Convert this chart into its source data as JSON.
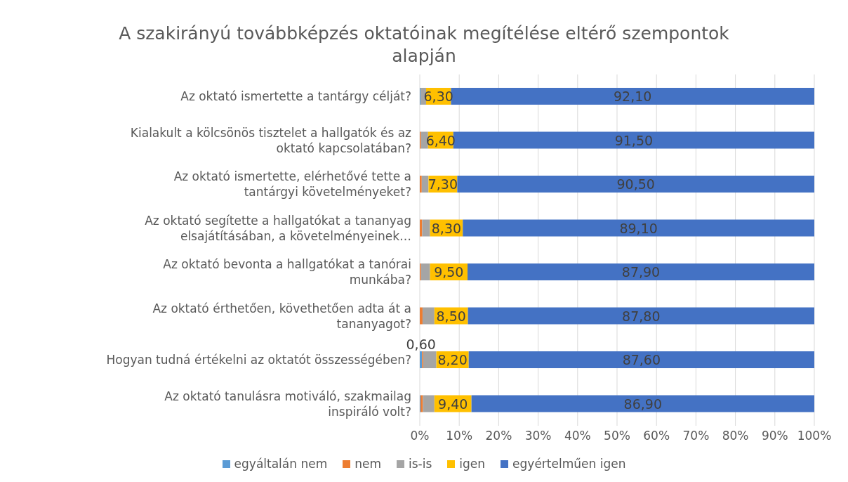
{
  "chart_data": {
    "type": "bar",
    "orientation": "horizontal",
    "stacked": true,
    "title": "A szakirányú továbbképzés oktatóinak megítélése eltérő szempontok alapján",
    "categories": [
      "Az oktató ismertette a tantárgy célját?",
      "Kialakult a kölcsönös tisztelet a hallgatók és az oktató kapcsolatában?",
      "Az oktató ismertette, elérhetővé tette a tantárgyi követelményeket?",
      "Az oktató segítette a hallgatókat a tananyag elsajátításában, a követelményeinek…",
      "Az oktató bevonta a hallgatókat a tanórai munkába?",
      "Az oktató érthetően, követhetően adta át a tananyagot?",
      "Hogyan tudná értékelni az oktatót összességében?",
      "Az oktató tanulásra motiváló, szakmailag inspiráló volt?"
    ],
    "series": [
      {
        "name": "egyáltalán nem",
        "color": "#5b9bd5",
        "values": [
          0.2,
          null,
          null,
          null,
          null,
          null,
          0.6,
          0.2
        ],
        "value_labels": [
          null,
          null,
          null,
          null,
          null,
          null,
          "0,60",
          null
        ]
      },
      {
        "name": "nem",
        "color": "#ed7d31",
        "values": [
          null,
          0.3,
          0.5,
          0.6,
          0.3,
          0.7,
          0.3,
          0.6
        ]
      },
      {
        "name": "is-is",
        "color": "#a5a5a5",
        "values": [
          1.4,
          1.8,
          1.7,
          2.0,
          2.3,
          3.0,
          3.3,
          2.9
        ]
      },
      {
        "name": "igen",
        "color": "#ffc000",
        "values": [
          6.3,
          6.4,
          7.3,
          8.3,
          9.5,
          8.5,
          8.2,
          9.4
        ],
        "value_labels": [
          "6,30",
          "6,40",
          "7,30",
          "8,30",
          "9,50",
          "8,50",
          "8,20",
          "9,40"
        ]
      },
      {
        "name": "egyértelműen igen",
        "color": "#4472c4",
        "values": [
          92.1,
          91.5,
          90.5,
          89.1,
          87.9,
          87.8,
          87.6,
          86.9
        ],
        "value_labels": [
          "92,10",
          "91,50",
          "90,50",
          "89,10",
          "87,90",
          "87,80",
          "87,60",
          "86,90"
        ]
      }
    ],
    "xlim": [
      0,
      100
    ],
    "xticks": [
      {
        "value": 0,
        "label": "0%"
      },
      {
        "value": 10,
        "label": "10%"
      },
      {
        "value": 20,
        "label": "20%"
      },
      {
        "value": 30,
        "label": "30%"
      },
      {
        "value": 40,
        "label": "40%"
      },
      {
        "value": 50,
        "label": "50%"
      },
      {
        "value": 60,
        "label": "60%"
      },
      {
        "value": 70,
        "label": "70%"
      },
      {
        "value": 80,
        "label": "80%"
      },
      {
        "value": 90,
        "label": "90%"
      },
      {
        "value": 100,
        "label": "100%"
      }
    ],
    "grid": "x",
    "legend": "bottom"
  }
}
